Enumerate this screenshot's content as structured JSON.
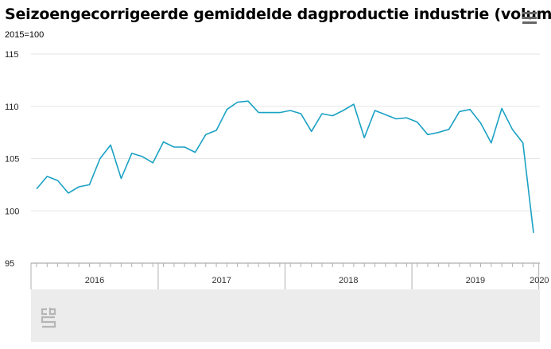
{
  "chart_data": {
    "type": "line",
    "title": "Seizoengecorrigeerde gemiddelde dagproductie industrie (volume)",
    "subtitle": "2015=100",
    "ylim": [
      95,
      115
    ],
    "yticks": [
      95,
      100,
      105,
      110,
      115
    ],
    "grid": true,
    "year_labels": [
      "2016",
      "2017",
      "2018",
      "2019",
      "2020"
    ],
    "series": [
      {
        "color": "#1aa1c4",
        "start": "2016-01",
        "values": [
          102.1,
          103.3,
          102.9,
          101.7,
          102.3,
          102.5,
          105.0,
          106.3,
          103.1,
          105.5,
          105.2,
          104.6,
          106.6,
          106.1,
          106.1,
          105.6,
          107.3,
          107.7,
          109.7,
          110.4,
          110.5,
          109.4,
          109.4,
          109.4,
          109.6,
          109.3,
          107.6,
          109.3,
          109.1,
          109.6,
          110.2,
          107.0,
          109.6,
          109.2,
          108.8,
          108.9,
          108.5,
          107.3,
          107.5,
          107.8,
          109.5,
          109.7,
          108.4,
          106.5,
          109.8,
          107.8,
          106.5,
          97.9
        ]
      }
    ]
  },
  "ui": {
    "menu_icon": "hamburger-menu-icon",
    "logo_icon": "cbs-logo-icon",
    "footer_color": "#ececec"
  }
}
